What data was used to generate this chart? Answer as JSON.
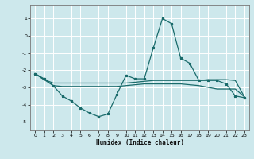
{
  "xlabel": "Humidex (Indice chaleur)",
  "xlim": [
    -0.5,
    23.5
  ],
  "ylim": [
    -5.5,
    1.8
  ],
  "yticks": [
    1,
    0,
    -1,
    -2,
    -3,
    -4,
    -5
  ],
  "xticks": [
    0,
    1,
    2,
    3,
    4,
    5,
    6,
    7,
    8,
    9,
    10,
    11,
    12,
    13,
    14,
    15,
    16,
    17,
    18,
    19,
    20,
    21,
    22,
    23
  ],
  "bg_color": "#cde8ec",
  "grid_color": "#ffffff",
  "line_color": "#1a6b6b",
  "line1_x": [
    0,
    1,
    2,
    3,
    4,
    5,
    6,
    7,
    8,
    9,
    10,
    11,
    12,
    13,
    14,
    15,
    16,
    17,
    18,
    19,
    20,
    21,
    22,
    23
  ],
  "line1_y": [
    -2.2,
    -2.5,
    -2.9,
    -3.5,
    -3.8,
    -4.2,
    -4.5,
    -4.7,
    -4.55,
    -3.4,
    -2.3,
    -2.5,
    -2.5,
    -0.7,
    1.0,
    0.7,
    -1.3,
    -1.6,
    -2.6,
    -2.6,
    -2.6,
    -2.8,
    -3.5,
    -3.6
  ],
  "line2_x": [
    0,
    1,
    2,
    3,
    4,
    5,
    6,
    7,
    8,
    9,
    10,
    11,
    12,
    13,
    14,
    15,
    16,
    17,
    18,
    19,
    20,
    21,
    22,
    23
  ],
  "line2_y": [
    -2.2,
    -2.55,
    -2.75,
    -2.75,
    -2.75,
    -2.75,
    -2.75,
    -2.75,
    -2.75,
    -2.75,
    -2.75,
    -2.7,
    -2.65,
    -2.6,
    -2.6,
    -2.6,
    -2.6,
    -2.6,
    -2.6,
    -2.55,
    -2.55,
    -2.55,
    -2.6,
    -3.55
  ],
  "line3_x": [
    0,
    1,
    2,
    3,
    4,
    5,
    6,
    7,
    8,
    9,
    10,
    11,
    12,
    13,
    14,
    15,
    16,
    17,
    18,
    19,
    20,
    21,
    22,
    23
  ],
  "line3_y": [
    -2.2,
    -2.55,
    -2.9,
    -2.95,
    -2.95,
    -2.95,
    -2.95,
    -2.95,
    -2.95,
    -2.95,
    -2.9,
    -2.85,
    -2.8,
    -2.8,
    -2.8,
    -2.8,
    -2.8,
    -2.85,
    -2.9,
    -3.0,
    -3.1,
    -3.1,
    -3.1,
    -3.55
  ]
}
